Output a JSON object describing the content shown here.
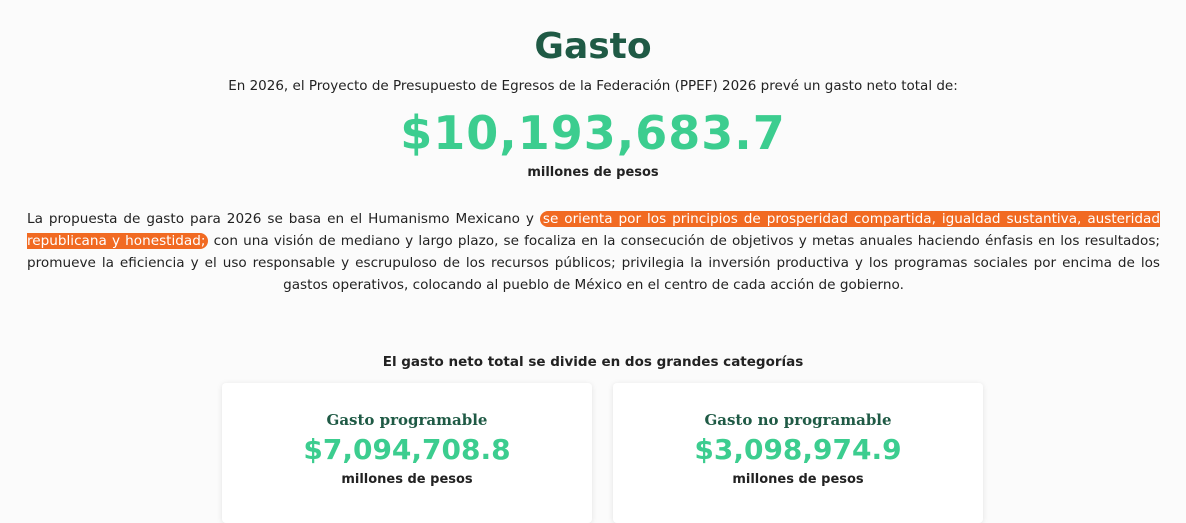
{
  "header": {
    "title": "Gasto",
    "intro": "En 2026, el Proyecto de Presupuesto de Egresos de la Federación (PPEF) 2026 prevé un gasto neto total de:",
    "total": "$10,193,683.7",
    "unit": "millones de pesos"
  },
  "description": {
    "before": "La propuesta de gasto para 2026 se basa en el Humanismo Mexicano y ",
    "highlight": "se orienta por los principios de prosperidad compartida, igualdad sustantiva, austeridad republicana y honestidad;",
    "after": " con una visión de mediano y largo plazo, se focaliza en la consecución de objetivos y metas anuales haciendo énfasis en los resultados; promueve la eficiencia y el uso responsable y escrupuloso de los recursos públicos; privilegia la inversión productiva y los programas sociales por encima de los gastos operativos, colocando al pueblo de México en el centro de cada acción de gobierno."
  },
  "categories": {
    "title": "El gasto neto total se divide en dos grandes categorías",
    "cards": [
      {
        "title": "Gasto programable",
        "amount": "$7,094,708.8",
        "unit": "millones de pesos"
      },
      {
        "title": "Gasto no programable",
        "amount": "$3,098,974.9",
        "unit": "millones de pesos"
      }
    ]
  }
}
